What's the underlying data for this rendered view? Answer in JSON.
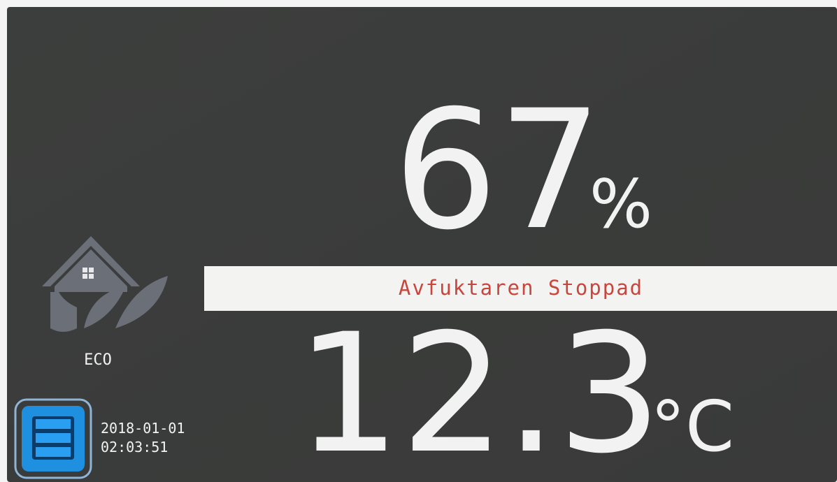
{
  "display": {
    "humidity": {
      "value": 67,
      "unit": "%"
    },
    "status": "Avfuktaren Stoppad",
    "temperature": {
      "value": 12.3,
      "unit": "°C"
    },
    "mode": "ECO",
    "date": "2018-01-01",
    "time": "02:03:51"
  }
}
